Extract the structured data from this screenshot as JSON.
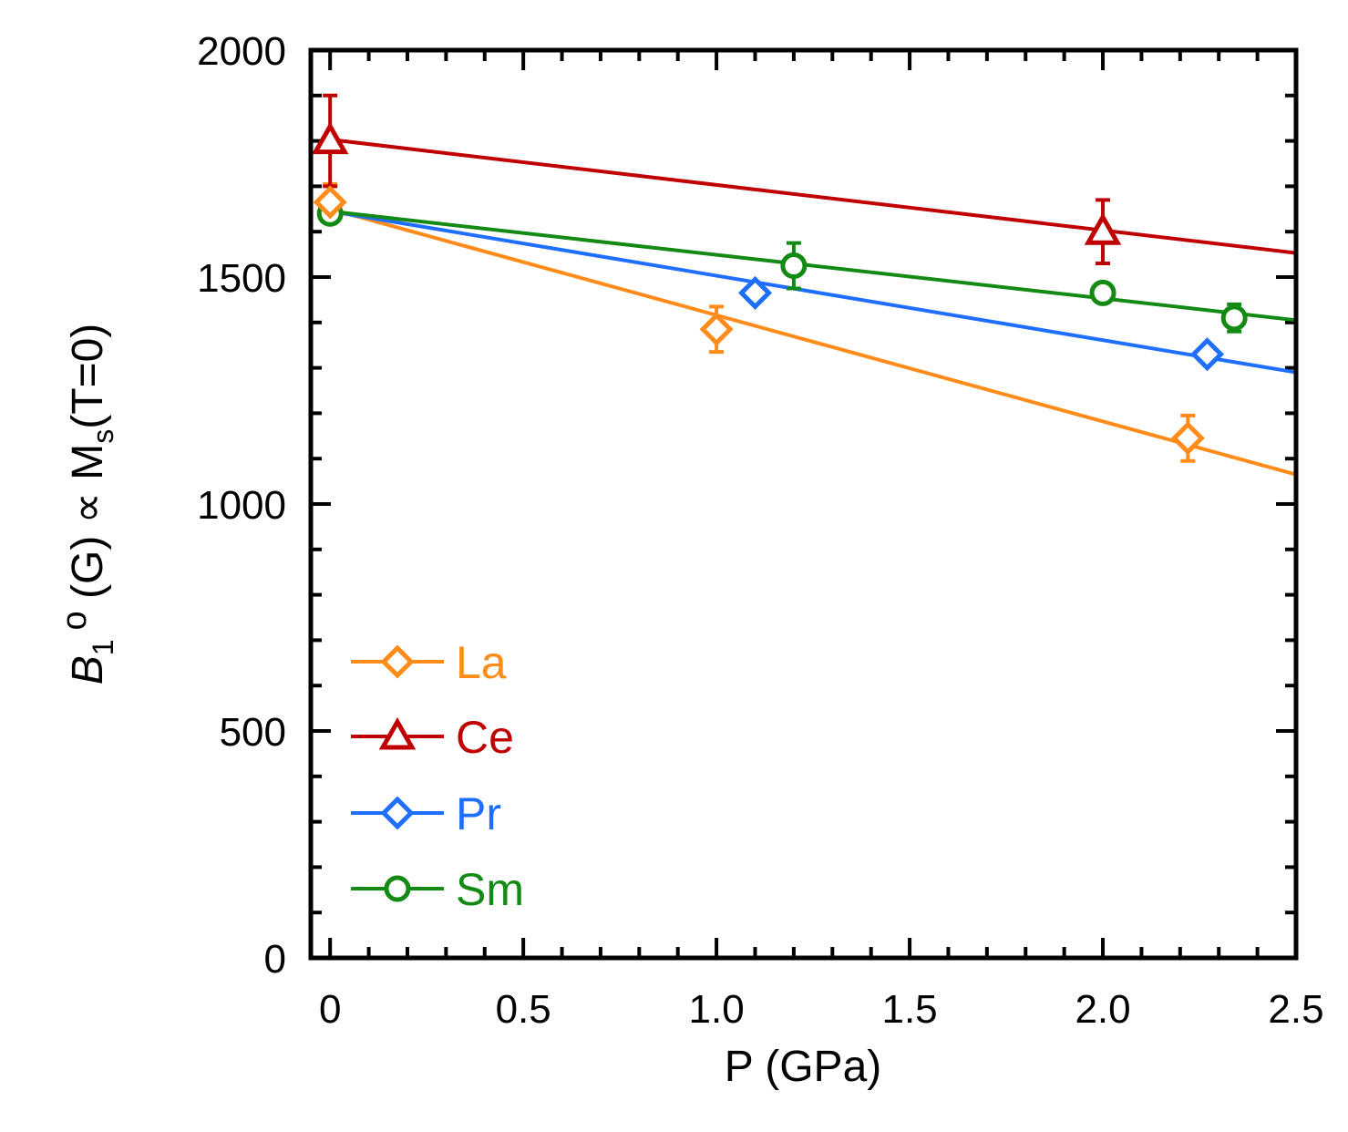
{
  "chart_data": {
    "type": "scatter",
    "title": "",
    "xlabel": "P (GPa)",
    "ylabel": {
      "symbol": "B",
      "subscript": "1",
      "superscript": "o",
      "unit": "(G)",
      "prop": "∝",
      "quantity": "M",
      "quantity_subscript": "s",
      "condition": "(T=0)"
    },
    "xlim": [
      -0.05,
      2.5
    ],
    "ylim": [
      0,
      2000
    ],
    "xticks": [
      0,
      0.5,
      1.0,
      1.5,
      2.0,
      2.5
    ],
    "xtick_labels": [
      "0",
      "0.5",
      "1.0",
      "1.5",
      "2.0",
      "2.5"
    ],
    "yticks": [
      0,
      500,
      1000,
      1500,
      2000
    ],
    "ytick_labels": [
      "0",
      "500",
      "1000",
      "1500",
      "2000"
    ],
    "legend_position": "bottom-left",
    "series": [
      {
        "name": "La",
        "marker": "diamond",
        "color": "#ff8c1a",
        "points": [
          {
            "x": 0,
            "y": 1665,
            "err": 40
          },
          {
            "x": 1.0,
            "y": 1385,
            "err": 50
          },
          {
            "x": 2.22,
            "y": 1145,
            "err": 50
          }
        ],
        "fit": {
          "x": [
            0,
            2.5
          ],
          "y": [
            1650,
            1065
          ]
        }
      },
      {
        "name": "Ce",
        "marker": "triangle",
        "color": "#c00000",
        "points": [
          {
            "x": 0,
            "y": 1800,
            "err": 100
          },
          {
            "x": 2.0,
            "y": 1600,
            "err": 70
          }
        ],
        "fit": {
          "x": [
            0,
            2.5
          ],
          "y": [
            1803,
            1553
          ]
        }
      },
      {
        "name": "Pr",
        "marker": "diamond",
        "color": "#1f6fff",
        "points": [
          {
            "x": 1.1,
            "y": 1465,
            "err": 0
          },
          {
            "x": 2.27,
            "y": 1330,
            "err": 0
          }
        ],
        "fit": {
          "x": [
            0,
            2.5
          ],
          "y": [
            1645,
            1290
          ]
        }
      },
      {
        "name": "Sm",
        "marker": "circle",
        "color": "#138a13",
        "points": [
          {
            "x": 0,
            "y": 1640,
            "err": 0
          },
          {
            "x": 1.2,
            "y": 1525,
            "err": 50
          },
          {
            "x": 2.0,
            "y": 1465,
            "err": 0
          },
          {
            "x": 2.34,
            "y": 1410,
            "err": 30
          }
        ],
        "fit": {
          "x": [
            0,
            2.5
          ],
          "y": [
            1645,
            1405
          ]
        }
      }
    ]
  }
}
